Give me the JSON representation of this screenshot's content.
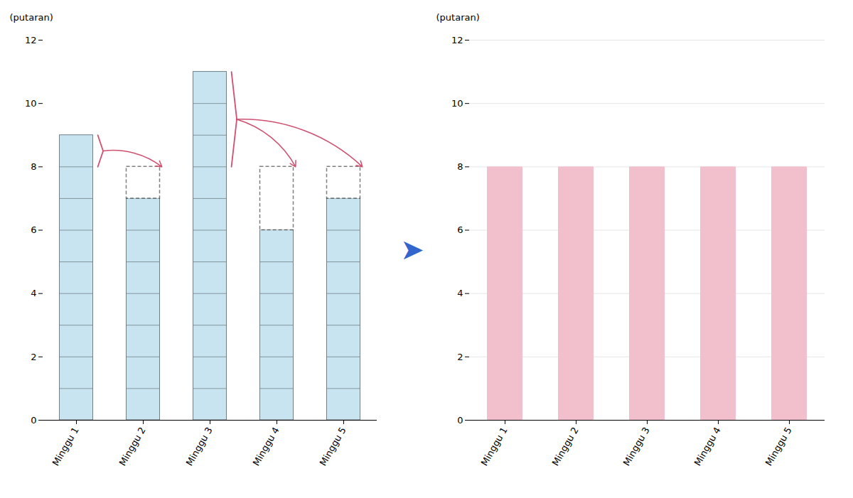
{
  "chart_data": [
    {
      "type": "bar",
      "ylabel": "(putaran)",
      "categories": [
        "Minggu 1",
        "Minggu 2",
        "Minggu 3",
        "Minggu 4",
        "Minggu 5"
      ],
      "values": [
        9,
        7,
        11,
        6,
        7
      ],
      "color": "#c8e4f0",
      "ylim": [
        0,
        12
      ],
      "yticks": [
        0,
        2,
        4,
        6,
        8,
        10,
        12
      ],
      "grid": false,
      "target": 8,
      "transfers": [
        {
          "from": "Minggu 1",
          "to": "Minggu 2",
          "color": "#d05070"
        },
        {
          "from": "Minggu 3",
          "to": "Minggu 4",
          "color": "#d05070"
        },
        {
          "from": "Minggu 3",
          "to": "Minggu 5",
          "color": "#d05070"
        }
      ],
      "annotations": [
        {
          "text": "➤",
          "color": "#3366cc"
        }
      ]
    },
    {
      "type": "bar",
      "ylabel": "(putaran)",
      "categories": [
        "Minggu 1",
        "Minggu 2",
        "Minggu 3",
        "Minggu 4",
        "Minggu 5"
      ],
      "values": [
        8,
        8,
        8,
        8,
        8
      ],
      "color": "#f2c0cc",
      "ylim": [
        0,
        12
      ],
      "yticks": [
        0,
        2,
        4,
        6,
        8,
        10,
        12
      ],
      "grid": true
    }
  ]
}
